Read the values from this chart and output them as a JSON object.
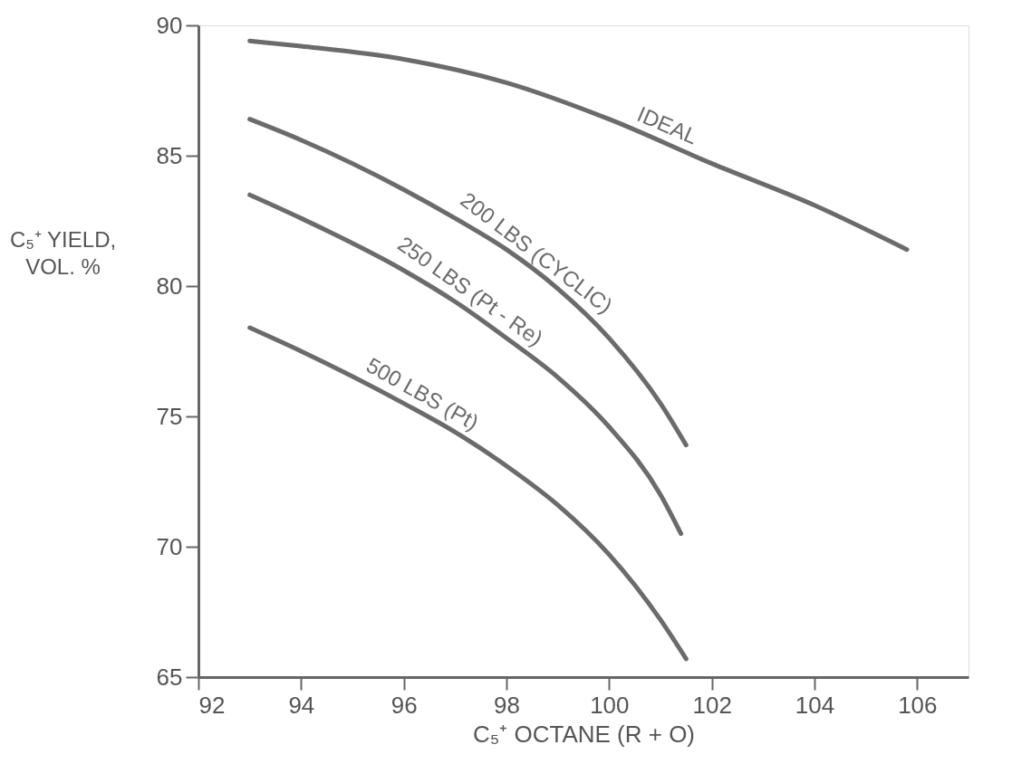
{
  "chart_data": {
    "type": "line",
    "xlabel": "C₅⁺ OCTANE  (R + O)",
    "ylabel": "C₅⁺ YIELD,\nVOL. %",
    "xlim": [
      92,
      107
    ],
    "xticks": [
      92,
      94,
      96,
      98,
      100,
      102,
      104,
      106
    ],
    "ylim": [
      65,
      90
    ],
    "yticks": [
      65,
      70,
      75,
      80,
      85,
      90
    ],
    "grid": false,
    "legend": false,
    "marker": "none",
    "line_style": "solid",
    "series": [
      {
        "name": "IDEAL",
        "color": "#6b6b6b",
        "x": [
          93,
          94,
          96,
          98,
          100,
          102,
          104,
          105.8
        ],
        "values": [
          89.4,
          89.2,
          88.7,
          87.8,
          86.4,
          84.7,
          83.1,
          81.4
        ]
      },
      {
        "name": "200 LBS  (CYCLIC)",
        "color": "#6b6b6b",
        "x": [
          93,
          94,
          96,
          97,
          98,
          99,
          100,
          101,
          101.5
        ],
        "values": [
          86.4,
          85.6,
          83.7,
          82.6,
          81.4,
          79.9,
          78.0,
          75.5,
          73.9
        ]
      },
      {
        "name": "250 LBS  (Pt - Re)",
        "color": "#6b6b6b",
        "x": [
          93,
          94,
          96,
          97,
          98,
          99,
          100,
          101,
          101.4
        ],
        "values": [
          83.5,
          82.6,
          80.6,
          79.4,
          78.0,
          76.5,
          74.6,
          72.0,
          70.5
        ]
      },
      {
        "name": "500 LBS    (Pt)",
        "color": "#6b6b6b",
        "x": [
          93,
          94,
          96,
          97,
          98,
          99,
          100,
          101,
          101.5
        ],
        "values": [
          78.4,
          77.5,
          75.5,
          74.4,
          73.1,
          71.6,
          69.7,
          67.2,
          65.7
        ]
      }
    ]
  }
}
